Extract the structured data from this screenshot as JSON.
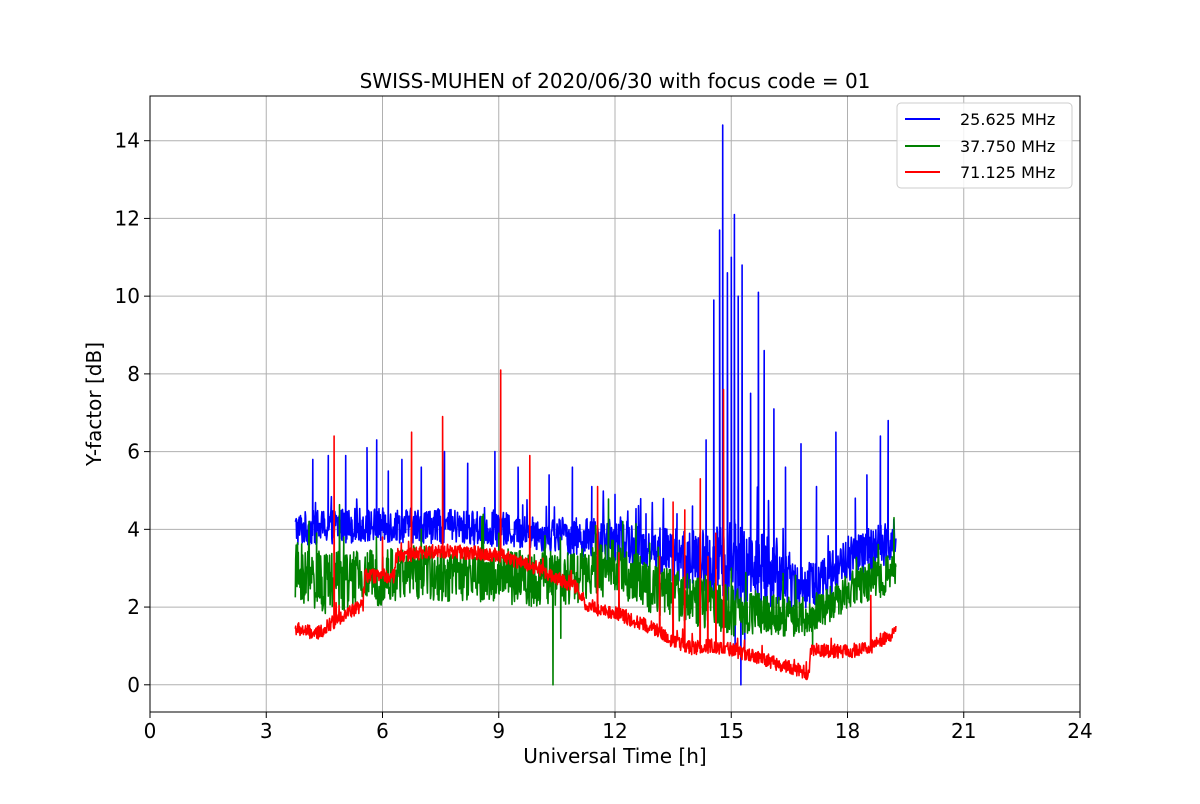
{
  "chart_data": {
    "type": "line",
    "title": "SWISS-MUHEN of 2020/06/30 with focus code = 01",
    "xlabel": "Universal Time [h]",
    "ylabel": "Y-factor [dB]",
    "xlim": [
      0,
      24
    ],
    "ylim": [
      -0.7,
      15.15
    ],
    "xticks": [
      0,
      3,
      6,
      9,
      12,
      15,
      18,
      21,
      24
    ],
    "yticks": [
      0,
      2,
      4,
      6,
      8,
      10,
      12,
      14
    ],
    "grid": true,
    "legend_position": "top-right",
    "data_range_hours": [
      3.75,
      19.25
    ],
    "series": [
      {
        "name": "25.625 MHz",
        "color": "#0000ff",
        "baseline": [
          [
            3.75,
            4.0
          ],
          [
            5,
            4.1
          ],
          [
            7,
            4.1
          ],
          [
            9,
            4.0
          ],
          [
            10,
            3.9
          ],
          [
            11,
            3.8
          ],
          [
            12,
            3.7
          ],
          [
            13,
            3.5
          ],
          [
            14,
            3.2
          ],
          [
            14.5,
            3.1
          ],
          [
            15,
            3.2
          ],
          [
            15.5,
            3.0
          ],
          [
            16,
            2.9
          ],
          [
            17,
            2.5
          ],
          [
            18,
            3.2
          ],
          [
            19,
            3.6
          ],
          [
            19.25,
            4.0
          ]
        ],
        "spread": [
          [
            3.75,
            0.45
          ],
          [
            10,
            0.45
          ],
          [
            13,
            0.6
          ],
          [
            14.5,
            0.9
          ],
          [
            15.3,
            1.2
          ],
          [
            16,
            0.9
          ],
          [
            17,
            0.6
          ],
          [
            19.25,
            0.6
          ]
        ],
        "spikes": [
          [
            4.2,
            5.8
          ],
          [
            4.6,
            5.9
          ],
          [
            5.05,
            5.9
          ],
          [
            5.6,
            6.1
          ],
          [
            5.85,
            6.3
          ],
          [
            6.15,
            5.5
          ],
          [
            6.5,
            5.8
          ],
          [
            7.0,
            5.6
          ],
          [
            7.6,
            6.0
          ],
          [
            8.2,
            5.7
          ],
          [
            8.9,
            6.0
          ],
          [
            9.5,
            5.6
          ],
          [
            10.3,
            5.4
          ],
          [
            10.9,
            5.6
          ],
          [
            11.4,
            5.1
          ],
          [
            12.0,
            4.9
          ],
          [
            12.8,
            4.4
          ],
          [
            13.6,
            4.4
          ],
          [
            14.0,
            4.6
          ],
          [
            14.35,
            6.3
          ],
          [
            14.55,
            9.9
          ],
          [
            14.7,
            11.7
          ],
          [
            14.78,
            14.4
          ],
          [
            14.9,
            10.6
          ],
          [
            15.0,
            11.0
          ],
          [
            15.08,
            12.1
          ],
          [
            15.18,
            10.0
          ],
          [
            15.28,
            10.8
          ],
          [
            15.5,
            7.5
          ],
          [
            15.7,
            10.1
          ],
          [
            15.85,
            8.6
          ],
          [
            16.1,
            7.1
          ],
          [
            16.4,
            5.6
          ],
          [
            16.8,
            6.2
          ],
          [
            17.2,
            5.1
          ],
          [
            17.7,
            6.5
          ],
          [
            18.2,
            4.8
          ],
          [
            18.5,
            5.4
          ],
          [
            18.85,
            6.4
          ],
          [
            19.05,
            6.8
          ]
        ],
        "dips": [
          [
            15.1,
            0.9
          ],
          [
            15.25,
            0.0
          ],
          [
            15.35,
            0.8
          ]
        ]
      },
      {
        "name": "37.750 MHz",
        "color": "#008000",
        "baseline": [
          [
            3.75,
            2.9
          ],
          [
            4.5,
            2.6
          ],
          [
            6,
            2.8
          ],
          [
            7,
            2.9
          ],
          [
            8,
            2.8
          ],
          [
            9,
            2.8
          ],
          [
            10,
            2.7
          ],
          [
            11,
            2.8
          ],
          [
            12,
            3.0
          ],
          [
            13,
            2.5
          ],
          [
            14,
            2.2
          ],
          [
            14.7,
            2.0
          ],
          [
            15,
            1.9
          ],
          [
            16,
            1.8
          ],
          [
            17,
            1.7
          ],
          [
            18,
            2.4
          ],
          [
            19,
            2.8
          ],
          [
            19.25,
            3.1
          ]
        ],
        "spread": [
          [
            3.75,
            0.8
          ],
          [
            6,
            0.75
          ],
          [
            12,
            0.7
          ],
          [
            15,
            0.65
          ],
          [
            17,
            0.45
          ],
          [
            19.25,
            0.5
          ]
        ],
        "spikes": [
          [
            4.3,
            3.9
          ],
          [
            5.0,
            3.8
          ],
          [
            7.0,
            4.0
          ],
          [
            9.0,
            3.9
          ],
          [
            11.5,
            4.1
          ],
          [
            12.2,
            4.2
          ],
          [
            15.0,
            3.0
          ],
          [
            19.2,
            4.3
          ]
        ],
        "dips": [
          [
            10.4,
            0.0
          ],
          [
            10.6,
            1.2
          ],
          [
            17.1,
            1.0
          ]
        ]
      },
      {
        "name": "71.125 MHz",
        "color": "#ff0000",
        "baseline": [
          [
            3.75,
            1.45
          ],
          [
            4.3,
            1.3
          ],
          [
            5.0,
            1.8
          ],
          [
            5.5,
            2.05
          ],
          [
            5.55,
            2.8
          ],
          [
            6.3,
            2.8
          ],
          [
            6.35,
            3.3
          ],
          [
            7.5,
            3.45
          ],
          [
            9.0,
            3.35
          ],
          [
            10.0,
            3.0
          ],
          [
            11.0,
            2.5
          ],
          [
            11.3,
            2.0
          ],
          [
            12.0,
            1.85
          ],
          [
            13.0,
            1.45
          ],
          [
            13.5,
            1.1
          ],
          [
            14.0,
            0.95
          ],
          [
            14.5,
            1.0
          ],
          [
            15.0,
            0.9
          ],
          [
            16.0,
            0.6
          ],
          [
            17.0,
            0.3
          ],
          [
            17.05,
            0.9
          ],
          [
            18.0,
            0.85
          ],
          [
            18.7,
            1.0
          ],
          [
            19.25,
            1.4
          ]
        ],
        "spread": [
          [
            3.75,
            0.18
          ],
          [
            19.25,
            0.18
          ]
        ],
        "spikes": [
          [
            4.75,
            6.4
          ],
          [
            6.0,
            3.8
          ],
          [
            6.75,
            6.5
          ],
          [
            7.55,
            6.9
          ],
          [
            9.05,
            8.1
          ],
          [
            9.8,
            5.9
          ],
          [
            11.55,
            5.1
          ],
          [
            12.1,
            3.4
          ],
          [
            13.15,
            3.3
          ],
          [
            13.5,
            4.7
          ],
          [
            13.8,
            4.5
          ],
          [
            14.2,
            5.3
          ],
          [
            14.4,
            3.3
          ],
          [
            14.6,
            3.9
          ],
          [
            14.8,
            7.6
          ],
          [
            18.6,
            2.3
          ]
        ],
        "dips": []
      }
    ]
  }
}
